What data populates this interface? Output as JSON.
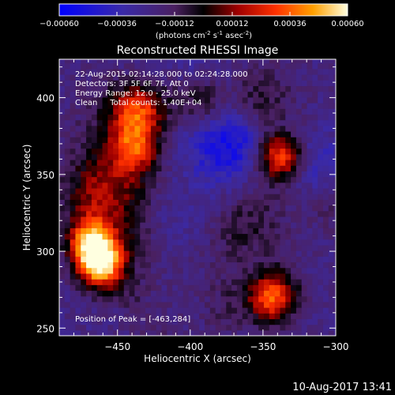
{
  "chart_data": {
    "type": "heatmap",
    "title": "Reconstructed RHESSI Image",
    "xlabel": "Heliocentric X (arcsec)",
    "ylabel": "Heliocentric Y (arcsec)",
    "xlim": [
      -490,
      -300
    ],
    "ylim": [
      245,
      425
    ],
    "xticks": [
      -450,
      -400,
      -350,
      -300
    ],
    "yticks": [
      250,
      300,
      350,
      400
    ],
    "colorbar": {
      "range": [
        -0.0006,
        0.0006
      ],
      "ticks": [
        "-0.00060",
        "-0.00036",
        "-0.00012",
        "0.00012",
        "0.00036",
        "0.00060"
      ],
      "label_pre": "(photons cm",
      "label_sup1": "-2",
      "label_mid1": " s",
      "label_sup2": "-1",
      "label_mid2": " asec",
      "label_sup3": "-2",
      "label_post": ")"
    },
    "annotations": [
      "22-Aug-2015 02:14:28.000 to 02:24:28.000",
      "Detectors: 3F 5F 6F 7F, Att 0",
      "Energy Range: 12.0 - 25.0 keV",
      "Clean     Total counts: 1.40E+04"
    ],
    "peak_label": "Position of Peak = [-463,284]",
    "peak_position": [
      -463,
      284
    ],
    "bright_sources": [
      {
        "x": -463,
        "y": 290,
        "intensity": 0.0006
      },
      {
        "x": -470,
        "y": 305,
        "intensity": 0.0005
      },
      {
        "x": -340,
        "y": 360,
        "intensity": 0.00045
      },
      {
        "x": -345,
        "y": 268,
        "intensity": 0.0004
      },
      {
        "x": -440,
        "y": 365,
        "intensity": 0.0003
      },
      {
        "x": -437,
        "y": 390,
        "intensity": 0.00024
      }
    ],
    "grid": false,
    "footer": "10-Aug-2017 13:41"
  }
}
